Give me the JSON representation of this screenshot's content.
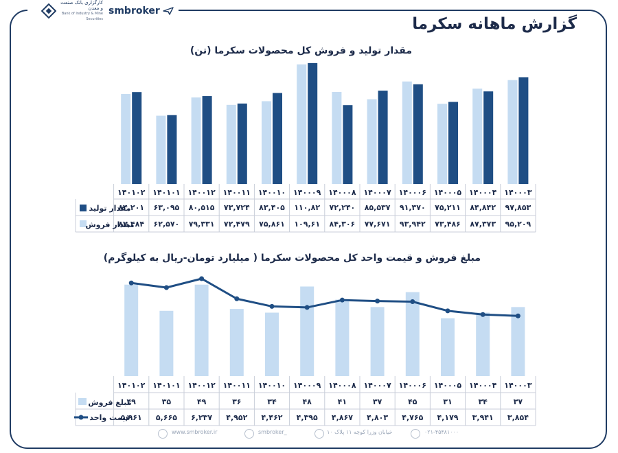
{
  "report_title": "گزارش ماهانه سکرما",
  "brand": {
    "name": "smbroker",
    "bank_name": "کارگزاری بانک صنعت و معدن",
    "bank_name_en": "Bank of Industry & Mine Securities"
  },
  "footer": {
    "website": "www.smbroker.ir",
    "instagram": "smbroker_",
    "address": "خیابان وزرا کوچه ۱۱ پلاک ۱۰",
    "phone": "۰۲۱-۴۵۴۸۱۰۰۰"
  },
  "colors": {
    "light_series": "#c5dcf2",
    "dark_series": "#1f4e84",
    "frame": "#1f3b63"
  },
  "chart_data": [
    {
      "type": "bar",
      "title": "مقدار تولید و فروش کل محصولات سکرما (تن)",
      "categories": [
        "۱۴۰۰۰۳",
        "۱۴۰۰۰۴",
        "۱۴۰۰۰۵",
        "۱۴۰۰۰۶",
        "۱۴۰۰۰۷",
        "۱۴۰۰۰۸",
        "۱۴۰۰۰۹",
        "۱۴۰۰۱۰",
        "۱۴۰۰۱۱",
        "۱۴۰۰۱۲",
        "۱۴۰۱۰۱",
        "۱۴۰۱۰۲"
      ],
      "ylim": [
        0,
        112
      ],
      "series": [
        {
          "name": "مقدار تولید",
          "color": "#1f4e84",
          "values": [
            97.853,
            84.842,
            75.211,
            91.37,
            85.537,
            72.24,
            110.82,
            83.405,
            73.724,
            80.515,
            63.095,
            84.201
          ],
          "labels": [
            "۹۷,۸۵۳",
            "۸۴,۸۴۲",
            "۷۵,۲۱۱",
            "۹۱,۳۷۰",
            "۸۵,۵۳۷",
            "۷۲,۲۴۰",
            "۱۱۰,۸۲",
            "۸۳,۴۰۵",
            "۷۳,۷۲۴",
            "۸۰,۵۱۵",
            "۶۳,۰۹۵",
            "۸۴,۲۰۱"
          ]
        },
        {
          "name": "مقدار فروش",
          "color": "#c5dcf2",
          "values": [
            95.209,
            87.373,
            73.486,
            93.942,
            77.671,
            84.306,
            109.61,
            75.861,
            72.479,
            79.331,
            62.57,
            82.484
          ],
          "labels": [
            "۹۵,۲۰۹",
            "۸۷,۳۷۳",
            "۷۳,۴۸۶",
            "۹۳,۹۴۲",
            "۷۷,۶۷۱",
            "۸۴,۳۰۶",
            "۱۰۹,۶۱",
            "۷۵,۸۶۱",
            "۷۲,۴۷۹",
            "۷۹,۳۳۱",
            "۶۲,۵۷۰",
            "۸۲,۴۸۴"
          ]
        }
      ]
    },
    {
      "type": "bar+line",
      "title": "مبلغ فروش و قیمت واحد کل محصولات سکرما ( میلیارد تومان-ریال به کیلوگرم)",
      "categories": [
        "۱۴۰۰۰۳",
        "۱۴۰۰۰۴",
        "۱۴۰۰۰۵",
        "۱۴۰۰۰۶",
        "۱۴۰۰۰۷",
        "۱۴۰۰۰۸",
        "۱۴۰۰۰۹",
        "۱۴۰۰۱۰",
        "۱۴۰۰۱۱",
        "۱۴۰۰۱۲",
        "۱۴۰۱۰۱",
        "۱۴۰۱۰۲"
      ],
      "bar_ylim": [
        0,
        50
      ],
      "line_ylim": [
        0,
        6500
      ],
      "series": [
        {
          "name": "مبلغ فروش",
          "type": "bar",
          "color": "#c5dcf2",
          "values": [
            37,
            34,
            31,
            45,
            37,
            41,
            48,
            34,
            36,
            49,
            35,
            49
          ],
          "labels": [
            "۳۷",
            "۳۴",
            "۳۱",
            "۴۵",
            "۳۷",
            "۴۱",
            "۴۸",
            "۳۴",
            "۳۶",
            "۴۹",
            "۳۵",
            "۴۹"
          ]
        },
        {
          "name": "قیمت واحد",
          "type": "line",
          "color": "#1f4e84",
          "values": [
            3854,
            3941,
            4179,
            4765,
            4803,
            4867,
            4395,
            4462,
            4952,
            6237,
            5665,
            5961
          ],
          "labels": [
            "۳,۸۵۴",
            "۳,۹۴۱",
            "۴,۱۷۹",
            "۴,۷۶۵",
            "۴,۸۰۳",
            "۴,۸۶۷",
            "۴,۳۹۵",
            "۴,۴۶۲",
            "۴,۹۵۲",
            "۶,۲۳۷",
            "۵,۶۶۵",
            "۵,۹۶۱"
          ]
        }
      ]
    }
  ]
}
